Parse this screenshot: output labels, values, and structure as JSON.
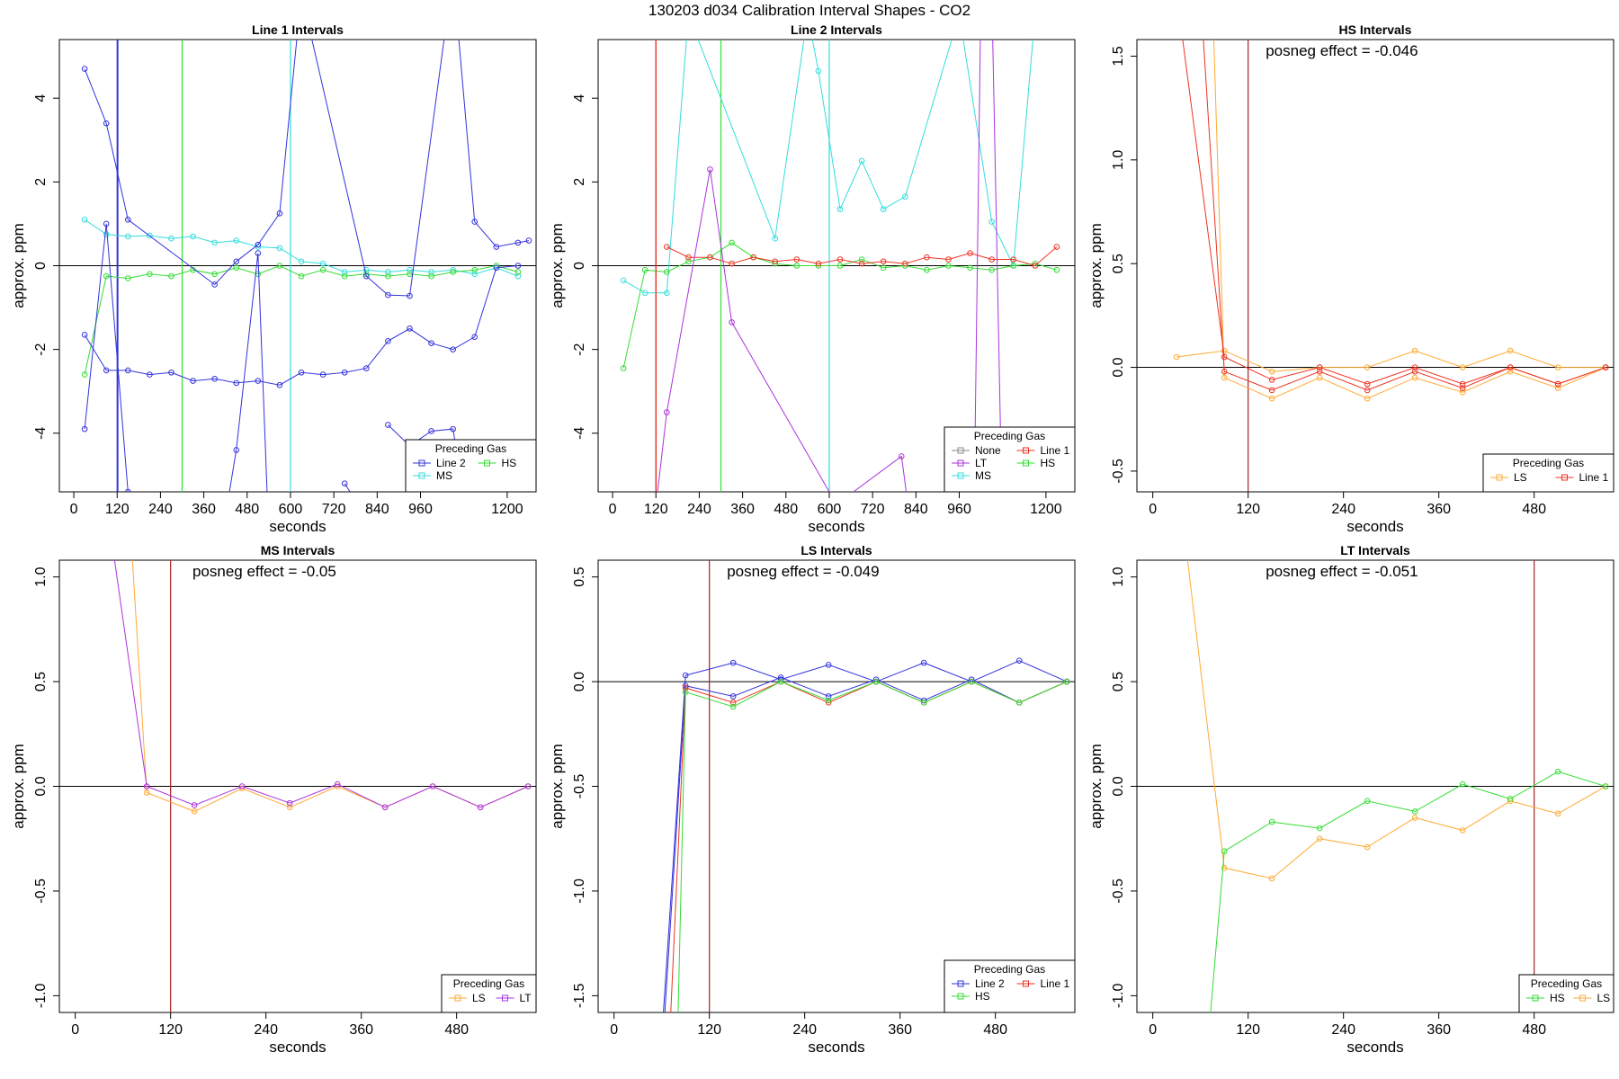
{
  "title": "130203  d034   Calibration Interval Shapes - CO2",
  "colors": {
    "Line 2": "#3333dd",
    "Line 1": "#ee3322",
    "HS": "#33dd33",
    "MS": "#33dddd",
    "LT": "#aa33dd",
    "LS": "#ffaa33",
    "None": "#888888"
  },
  "chart_data": [
    {
      "type": "line",
      "title": "Line 1 Intervals",
      "xlabel": "seconds",
      "ylabel": "approx. ppm",
      "xlim": [
        -40,
        1280
      ],
      "ylim": [
        -5.4,
        5.4
      ],
      "xticks": [
        0,
        120,
        240,
        360,
        480,
        600,
        720,
        840,
        960,
        1200
      ],
      "yticks": [
        -4,
        -2,
        0,
        2,
        4
      ],
      "vlines": [
        {
          "x": 120,
          "color": "Line 2"
        },
        {
          "x": 122,
          "color": "Line 2"
        },
        {
          "x": 300,
          "color": "HS"
        },
        {
          "x": 600,
          "color": "MS"
        }
      ],
      "legend": {
        "title": "Preceding Gas",
        "entries": [
          "Line 2",
          "HS",
          "MS"
        ],
        "ncol": 2
      },
      "series": [
        {
          "name": "MS",
          "color": "MS",
          "x": [
            30,
            90,
            150,
            210,
            270,
            330,
            390,
            450,
            510,
            570,
            630,
            690,
            750,
            810,
            870,
            930,
            990,
            1050,
            1110,
            1170,
            1230
          ],
          "y": [
            1.1,
            0.75,
            0.7,
            0.72,
            0.65,
            0.7,
            0.55,
            0.6,
            0.45,
            0.42,
            0.1,
            0.05,
            -0.15,
            -0.1,
            -0.15,
            -0.1,
            -0.15,
            -0.1,
            -0.2,
            -0.05,
            -0.25
          ]
        },
        {
          "name": "HS",
          "color": "HS",
          "x": [
            30,
            90,
            150,
            210,
            270,
            330,
            390,
            450,
            510,
            570,
            630,
            690,
            750,
            810,
            870,
            930,
            990,
            1050,
            1110,
            1170,
            1230
          ],
          "y": [
            -2.6,
            -0.25,
            -0.3,
            -0.2,
            -0.25,
            -0.1,
            -0.2,
            -0.05,
            -0.2,
            0.0,
            -0.25,
            -0.1,
            -0.25,
            -0.2,
            -0.25,
            -0.2,
            -0.25,
            -0.15,
            -0.1,
            0.0,
            -0.15
          ]
        },
        {
          "name": "Line 2 a",
          "color": "Line 2",
          "x": [
            30,
            90,
            150,
            210,
            270,
            330,
            390,
            450,
            510,
            570,
            630,
            690,
            750,
            810,
            870,
            930,
            990,
            1050,
            1110,
            1170,
            1230
          ],
          "y": [
            -1.65,
            -2.5,
            -2.5,
            -2.6,
            -2.55,
            -2.75,
            -2.7,
            -2.8,
            -2.75,
            -2.85,
            -2.55,
            -2.6,
            -2.55,
            -2.45,
            -1.8,
            -1.5,
            -1.85,
            -2.0,
            -1.7,
            -0.05,
            0.0
          ]
        },
        {
          "name": "Line 2 b",
          "color": "Line 2",
          "x": [
            30,
            90,
            150,
            390,
            450,
            510,
            570,
            630,
            810,
            870,
            930,
            1050,
            1110,
            1170,
            1230,
            1260
          ],
          "y": [
            4.7,
            3.4,
            1.1,
            -0.45,
            0.1,
            0.5,
            1.25,
            6.5,
            -0.25,
            -0.7,
            -0.72,
            7.0,
            1.05,
            0.45,
            0.55,
            0.6
          ]
        },
        {
          "name": "Line 2 c",
          "color": "Line 2",
          "x": [
            30,
            90,
            150,
            180
          ],
          "y": [
            -3.9,
            1.0,
            -5.4,
            -6.5
          ]
        },
        {
          "name": "Line 2 d",
          "color": "Line 2",
          "x": [
            410,
            450,
            510,
            540
          ],
          "y": [
            -6.5,
            -4.4,
            0.3,
            -6.5
          ]
        },
        {
          "name": "Line 2 e",
          "color": "Line 2",
          "x": [
            750,
            780
          ],
          "y": [
            -5.2,
            -5.6
          ]
        },
        {
          "name": "Line 2 f",
          "color": "Line 2",
          "x": [
            870,
            930,
            990,
            1050,
            1080
          ],
          "y": [
            -3.8,
            -4.3,
            -3.95,
            -3.9,
            -5.6
          ]
        }
      ]
    },
    {
      "type": "line",
      "title": "Line 2 Intervals",
      "xlabel": "seconds",
      "ylabel": "approx. ppm",
      "xlim": [
        -40,
        1280
      ],
      "ylim": [
        -5.4,
        5.4
      ],
      "xticks": [
        0,
        120,
        240,
        360,
        480,
        600,
        720,
        840,
        960,
        1200
      ],
      "yticks": [
        -4,
        -2,
        0,
        2,
        4
      ],
      "vlines": [
        {
          "x": 120,
          "color": "#aa2222"
        },
        {
          "x": 300,
          "color": "HS"
        },
        {
          "x": 600,
          "color": "MS"
        }
      ],
      "legend": {
        "title": "Preceding Gas",
        "entries": [
          "None",
          "Line 1",
          "LT",
          "HS",
          "MS"
        ],
        "ncol": 2
      },
      "series": [
        {
          "name": "MS",
          "color": "MS",
          "x": [
            30,
            90,
            150,
            210,
            450,
            540,
            570,
            630,
            690,
            750,
            810,
            960,
            1050,
            1110,
            1170,
            1200
          ],
          "y": [
            -0.35,
            -0.65,
            -0.65,
            6.0,
            0.65,
            6.0,
            4.65,
            1.35,
            2.5,
            1.35,
            1.65,
            6.0,
            1.05,
            0.0,
            6.0,
            7.0
          ]
        },
        {
          "name": "HS",
          "color": "HS",
          "x": [
            30,
            90,
            150,
            210,
            270,
            330,
            390,
            450,
            510,
            570,
            630,
            690,
            750,
            810,
            870,
            930,
            990,
            1050,
            1110,
            1170,
            1230
          ],
          "y": [
            -2.45,
            -0.1,
            -0.15,
            0.1,
            0.2,
            0.55,
            0.2,
            0.05,
            0.0,
            0.0,
            0.0,
            0.15,
            -0.05,
            0.0,
            -0.1,
            0.0,
            -0.05,
            -0.1,
            0.0,
            0.05,
            -0.1
          ]
        },
        {
          "name": "Line 1",
          "color": "Line 1",
          "x": [
            150,
            210,
            270,
            330,
            390,
            450,
            510,
            570,
            630,
            690,
            750,
            810,
            870,
            930,
            990,
            1050,
            1110,
            1170,
            1230
          ],
          "y": [
            0.45,
            0.2,
            0.2,
            0.05,
            0.2,
            0.1,
            0.15,
            0.05,
            0.15,
            0.05,
            0.1,
            0.05,
            0.2,
            0.15,
            0.3,
            0.15,
            0.15,
            0.0,
            0.45
          ]
        },
        {
          "name": "LT",
          "color": "LT",
          "x": [
            110,
            150,
            270,
            330,
            620,
            800,
            830,
            1000,
            1020,
            1050,
            1080
          ],
          "y": [
            -6.5,
            -3.5,
            2.3,
            -1.35,
            -5.7,
            -4.55,
            -6.5,
            -6.5,
            6.5,
            6.5,
            -6.5
          ]
        },
        {
          "name": "Line 1 vertical",
          "color": "Line 1",
          "x": [
            120,
            121
          ],
          "y": [
            6.5,
            -6.5
          ]
        }
      ]
    },
    {
      "type": "line",
      "title": "HS Intervals",
      "xlabel": "seconds",
      "ylabel": "approx. ppm",
      "xlim": [
        -20,
        580
      ],
      "ylim": [
        -0.6,
        1.58
      ],
      "xticks": [
        0,
        120,
        240,
        360,
        480
      ],
      "yticks": [
        -0.5,
        0.0,
        0.5,
        1.0,
        1.5
      ],
      "yticklabels": [
        "-0.5",
        "0.0",
        "0.5",
        "1.0",
        "1.5"
      ],
      "vlines": [
        {
          "x": 120,
          "color": "#aa2222"
        }
      ],
      "annotation": "posneg effect = -0.046",
      "legend": {
        "title": "Preceding Gas",
        "entries": [
          "LS",
          "Line 1"
        ],
        "ncol": 2
      },
      "series": [
        {
          "name": "LS a",
          "color": "LS",
          "x": [
            30,
            90,
            150,
            210,
            270,
            330,
            390,
            450,
            510,
            570
          ],
          "y": [
            0.05,
            0.08,
            -0.02,
            0.0,
            0.0,
            0.08,
            0.0,
            0.08,
            0.0,
            0.0
          ]
        },
        {
          "name": "LS b",
          "color": "LS",
          "x": [
            75,
            90,
            150,
            210,
            270,
            330,
            390,
            450,
            510,
            570
          ],
          "y": [
            1.8,
            -0.05,
            -0.15,
            -0.05,
            -0.15,
            -0.05,
            -0.12,
            -0.02,
            -0.1,
            0.0
          ]
        },
        {
          "name": "Line 1 a",
          "color": "Line 1",
          "x": [
            30,
            90,
            150,
            210,
            270,
            330,
            390,
            450,
            510,
            570
          ],
          "y": [
            1.8,
            0.05,
            -0.06,
            0.0,
            -0.08,
            0.0,
            -0.08,
            0.0,
            -0.08,
            0.0
          ]
        },
        {
          "name": "Line 1 b",
          "color": "Line 1",
          "x": [
            60,
            90,
            150,
            210,
            270,
            330,
            390,
            450,
            510,
            570
          ],
          "y": [
            1.8,
            -0.02,
            -0.11,
            -0.02,
            -0.11,
            -0.02,
            -0.1,
            0.0,
            -0.08,
            0.0
          ]
        }
      ]
    },
    {
      "type": "line",
      "title": "MS Intervals",
      "xlabel": "seconds",
      "ylabel": "approx. ppm",
      "xlim": [
        -20,
        580
      ],
      "ylim": [
        -1.08,
        1.08
      ],
      "xticks": [
        0,
        120,
        240,
        360,
        480
      ],
      "yticks": [
        -1.0,
        -0.5,
        0.0,
        0.5,
        1.0
      ],
      "yticklabels": [
        "-1.0",
        "-0.5",
        "0.0",
        "0.5",
        "1.0"
      ],
      "vlines": [
        {
          "x": 120,
          "color": "#aa2222"
        }
      ],
      "annotation": "posneg effect = -0.05",
      "legend": {
        "title": "Preceding Gas",
        "entries": [
          "LS",
          "LT"
        ],
        "ncol": 2
      },
      "series": [
        {
          "name": "LS",
          "color": "LS",
          "x": [
            70,
            90,
            150,
            210,
            270,
            330,
            390,
            450,
            510,
            570
          ],
          "y": [
            1.2,
            -0.03,
            -0.12,
            -0.01,
            -0.1,
            0.0,
            -0.1,
            0.0,
            -0.1,
            0.0
          ]
        },
        {
          "name": "LT",
          "color": "LT",
          "x": [
            45,
            90,
            150,
            210,
            270,
            330,
            390,
            450,
            510,
            570
          ],
          "y": [
            1.2,
            0.0,
            -0.09,
            0.0,
            -0.08,
            0.01,
            -0.1,
            0.0,
            -0.1,
            0.0
          ]
        }
      ]
    },
    {
      "type": "line",
      "title": "LS Intervals",
      "xlabel": "seconds",
      "ylabel": "approx. ppm",
      "xlim": [
        -20,
        580
      ],
      "ylim": [
        -1.58,
        0.58
      ],
      "xticks": [
        0,
        120,
        240,
        360,
        480
      ],
      "yticks": [
        -1.5,
        -1.0,
        -0.5,
        0.0,
        0.5
      ],
      "yticklabels": [
        "-1.5",
        "-1.0",
        "-0.5",
        "0.0",
        "0.5"
      ],
      "vlines": [
        {
          "x": 120,
          "color": "#aa2222"
        }
      ],
      "annotation": "posneg effect = -0.049",
      "legend": {
        "title": "Preceding Gas",
        "entries": [
          "Line 2",
          "Line 1",
          "HS"
        ],
        "ncol": 2
      },
      "series": [
        {
          "name": "Line 2",
          "color": "Line 2",
          "x": [
            60,
            90,
            150,
            210,
            270,
            330,
            390,
            450,
            510,
            570
          ],
          "y": [
            -1.7,
            0.03,
            0.09,
            0.01,
            0.08,
            0.0,
            0.09,
            0.0,
            0.1,
            0.0
          ]
        },
        {
          "name": "Line 2 b",
          "color": "Line 2",
          "x": [
            62,
            90,
            150,
            210,
            270,
            330,
            390,
            450,
            510,
            570
          ],
          "y": [
            -1.7,
            -0.02,
            -0.07,
            0.02,
            -0.07,
            0.01,
            -0.09,
            0.01,
            -0.1,
            0.0
          ]
        },
        {
          "name": "Line 1",
          "color": "Line 1",
          "x": [
            70,
            90,
            150,
            210,
            270,
            330,
            390,
            450,
            510,
            570
          ],
          "y": [
            -1.7,
            -0.03,
            -0.1,
            0.0,
            -0.1,
            0.0,
            -0.1,
            0.0,
            -0.1,
            0.0
          ]
        },
        {
          "name": "HS",
          "color": "HS",
          "x": [
            80,
            90,
            150,
            210,
            270,
            330,
            390,
            450,
            510,
            570
          ],
          "y": [
            -1.7,
            -0.05,
            -0.12,
            0.0,
            -0.09,
            0.0,
            -0.1,
            0.0,
            -0.1,
            0.0
          ]
        }
      ]
    },
    {
      "type": "line",
      "title": "LT Intervals",
      "xlabel": "seconds",
      "ylabel": "approx. ppm",
      "xlim": [
        -20,
        580
      ],
      "ylim": [
        -1.08,
        1.08
      ],
      "xticks": [
        0,
        120,
        240,
        360,
        480
      ],
      "yticks": [
        -1.0,
        -0.5,
        0.0,
        0.5,
        1.0
      ],
      "yticklabels": [
        "-1.0",
        "-0.5",
        "0.0",
        "0.5",
        "1.0"
      ],
      "vlines": [
        {
          "x": 480,
          "color": "#aa2222"
        }
      ],
      "annotation": "posneg effect = -0.051",
      "legend": {
        "title": "Preceding Gas",
        "entries": [
          "HS",
          "LS"
        ],
        "ncol": 2
      },
      "series": [
        {
          "name": "LS",
          "color": "LS",
          "x": [
            40,
            90,
            150,
            210,
            270,
            330,
            390,
            450,
            510,
            570
          ],
          "y": [
            1.2,
            -0.39,
            -0.44,
            -0.25,
            -0.29,
            -0.15,
            -0.21,
            -0.07,
            -0.13,
            0.0
          ]
        },
        {
          "name": "HS",
          "color": "HS",
          "x": [
            70,
            90,
            150,
            210,
            270,
            330,
            390,
            450,
            510,
            570
          ],
          "y": [
            -1.2,
            -0.31,
            -0.17,
            -0.2,
            -0.07,
            -0.12,
            0.01,
            -0.06,
            0.07,
            0.0
          ]
        }
      ]
    }
  ]
}
